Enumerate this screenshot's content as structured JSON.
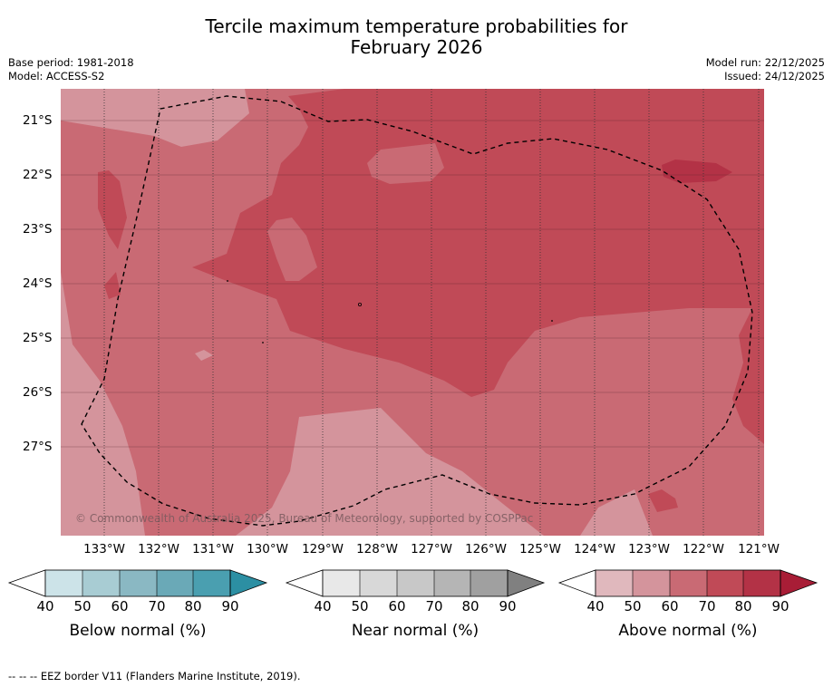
{
  "title_line1": "Tercile maximum temperature probabilities for",
  "title_line2": "February 2026",
  "base_period": "Base period: 1981-2018",
  "model": "Model: ACCESS-S2",
  "model_run": "Model run: 22/12/2025",
  "issued": "Issued: 24/12/2025",
  "copyright": "© Commonwealth of Australia 2025, Bureau of Meteorology, supported by COSPPac",
  "footer": "--  --  -- EEZ border V11 (Flanders Marine Institute, 2019).",
  "chart_data": {
    "type": "heatmap",
    "lat_ticks": [
      "21°S",
      "22°S",
      "23°S",
      "24°S",
      "25°S",
      "26°S",
      "27°S"
    ],
    "lon_ticks": [
      "133°W",
      "132°W",
      "131°W",
      "130°W",
      "129°W",
      "128°W",
      "127°W",
      "126°W",
      "125°W",
      "124°W",
      "123°W",
      "122°W",
      "121°W"
    ],
    "grid": true,
    "colorbars": [
      {
        "label": "Below normal (%)",
        "ticks": [
          "40",
          "50",
          "60",
          "70",
          "80",
          "90"
        ],
        "colors": [
          "#ffffff",
          "#cce3e8",
          "#a8ccd3",
          "#8ab8c3",
          "#6aa9b7",
          "#4a9fb0",
          "#2c8fa3"
        ]
      },
      {
        "label": "Near normal (%)",
        "ticks": [
          "40",
          "50",
          "60",
          "70",
          "80",
          "90"
        ],
        "colors": [
          "#ffffff",
          "#e8e8e8",
          "#d8d8d8",
          "#c8c8c8",
          "#b5b5b5",
          "#a0a0a0",
          "#808080"
        ]
      },
      {
        "label": "Above normal (%)",
        "ticks": [
          "40",
          "50",
          "60",
          "70",
          "80",
          "90"
        ],
        "colors": [
          "#ffffff",
          "#e0b8bd",
          "#d4949c",
          "#c96a74",
          "#c04a57",
          "#b33246",
          "#a81d36"
        ]
      }
    ]
  }
}
